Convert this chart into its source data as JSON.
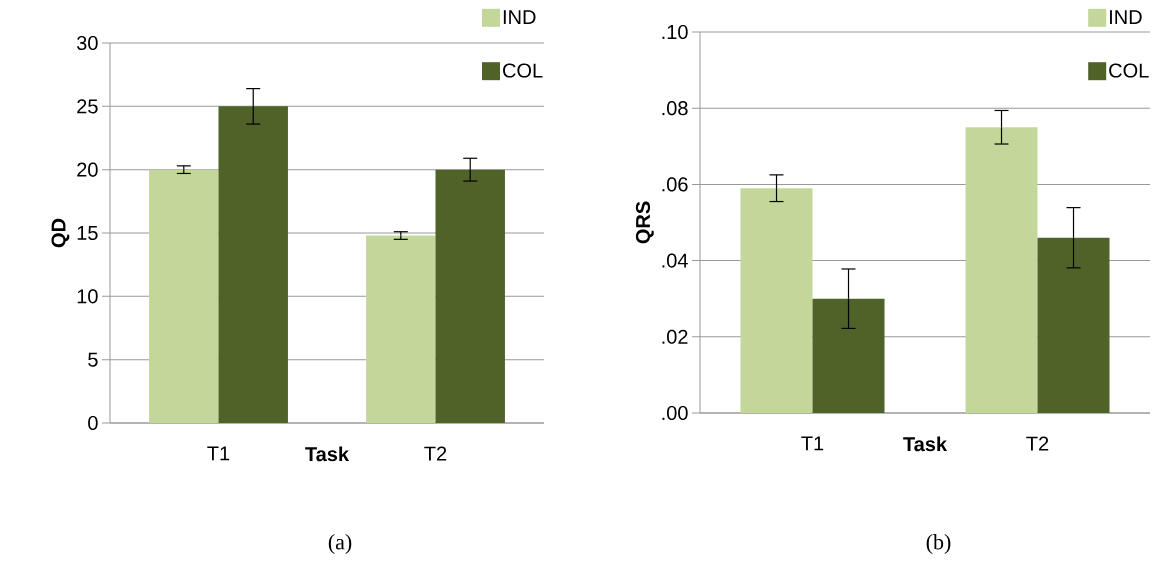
{
  "chart_data": [
    {
      "type": "bar",
      "ylabel": "QD",
      "xlabel": "Task",
      "categories": [
        "T1",
        "T2"
      ],
      "series": [
        {
          "name": "IND",
          "color": "#c4d79b",
          "values": [
            20,
            14.8
          ],
          "errors": [
            0.3,
            0.3
          ]
        },
        {
          "name": "COL",
          "color": "#4f6228",
          "values": [
            25,
            20
          ],
          "errors": [
            1.4,
            0.9
          ]
        }
      ],
      "ylim": [
        0,
        30
      ],
      "yticks": [
        0,
        5,
        10,
        15,
        20,
        25,
        30
      ],
      "grid": "y",
      "legend": "top right",
      "annotations": [
        "(a)"
      ]
    },
    {
      "type": "bar",
      "ylabel": "QRS",
      "xlabel": "Task",
      "categories": [
        "T1",
        "T2"
      ],
      "series": [
        {
          "name": "IND",
          "color": "#c4d79b",
          "values": [
            0.059,
            0.075
          ],
          "errors": [
            0.0035,
            0.0044
          ]
        },
        {
          "name": "COL",
          "color": "#4f6228",
          "values": [
            0.03,
            0.046
          ],
          "errors": [
            0.0078,
            0.0079
          ]
        }
      ],
      "ylim": [
        0,
        0.1
      ],
      "yticks": [
        {
          "value": 0,
          "label": ".00"
        },
        {
          "value": 0.02,
          "label": ".02"
        },
        {
          "value": 0.04,
          "label": ".04"
        },
        {
          "value": 0.06,
          "label": ".06"
        },
        {
          "value": 0.08,
          "label": ".08"
        },
        {
          "value": 0.1,
          "label": ".10"
        }
      ],
      "grid": "y",
      "legend": "top right",
      "annotations": [
        "(b)"
      ]
    }
  ]
}
